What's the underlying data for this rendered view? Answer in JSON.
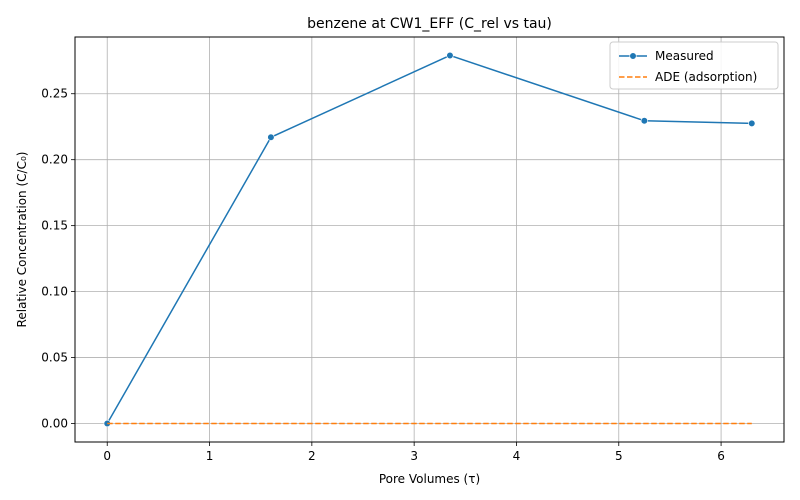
{
  "chart_data": {
    "type": "line",
    "title": "benzene at CW1_EFF (C_rel vs tau)",
    "xlabel": "Pore Volumes (τ)",
    "ylabel": "Relative Concentration (C/C₀)",
    "xlim": [
      -0.315,
      6.615
    ],
    "ylim": [
      -0.014,
      0.293
    ],
    "xticks": [
      0,
      1,
      2,
      3,
      4,
      5,
      6
    ],
    "xtick_labels": [
      "0",
      "1",
      "2",
      "3",
      "4",
      "5",
      "6"
    ],
    "yticks": [
      0.0,
      0.05,
      0.1,
      0.15,
      0.2,
      0.25
    ],
    "ytick_labels": [
      "0.00",
      "0.05",
      "0.10",
      "0.15",
      "0.20",
      "0.25"
    ],
    "grid": true,
    "legend_position": "top-right",
    "series": [
      {
        "name": "Measured",
        "color": "#1f77b4",
        "style": "solid",
        "marker": "circle",
        "x": [
          0.0,
          1.6,
          3.35,
          5.25,
          6.3
        ],
        "y": [
          0.0,
          0.217,
          0.279,
          0.2295,
          0.2275
        ]
      },
      {
        "name": "ADE (adsorption)",
        "color": "#ff7f0e",
        "style": "dashed",
        "marker": "none",
        "x": [
          0.0,
          6.3
        ],
        "y": [
          0.0,
          0.0
        ]
      }
    ]
  }
}
